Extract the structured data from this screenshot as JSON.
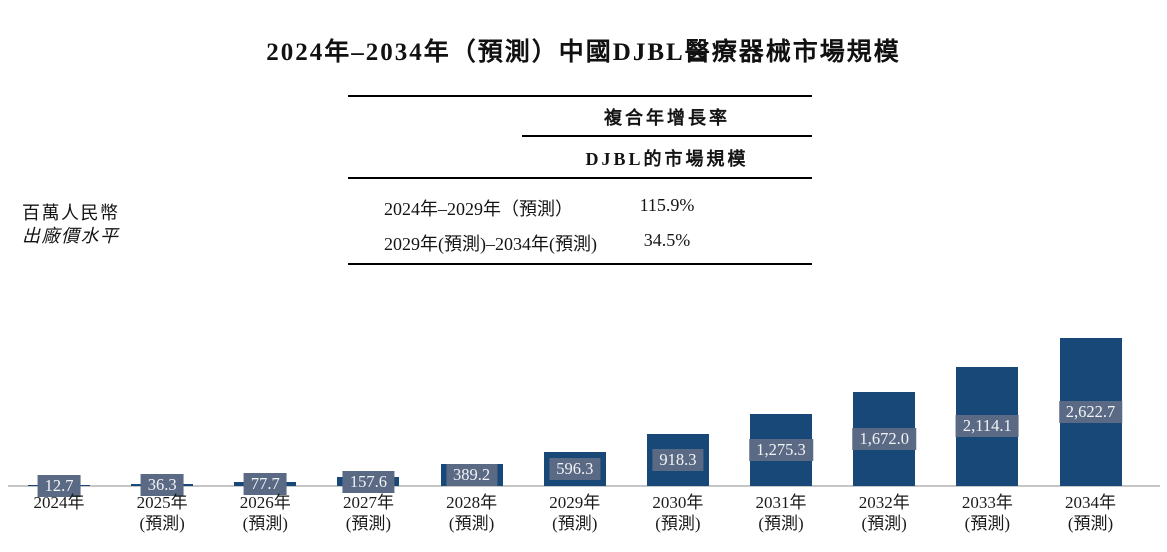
{
  "title": "2024年–2034年（預測）中國DJBL醫療器械市場規模",
  "unit_label": {
    "line1": "百萬人民幣",
    "line2": "出廠價水平"
  },
  "cagr_table": {
    "header_group": "複合年增長率",
    "header_sub": "DJBL的市場規模",
    "rows": [
      {
        "period": "2024年–2029年（預測）",
        "value": "115.9%"
      },
      {
        "period": "2029年(預測)–2034年(預測)",
        "value": "34.5%"
      }
    ]
  },
  "chart_data": {
    "type": "bar",
    "title": "2024年–2034年（預測）中國DJBL醫療器械市場規模",
    "ylabel": "百萬人民幣（出廠價水平）",
    "xlabel": "",
    "ylim": [
      0,
      2800
    ],
    "grid": false,
    "legend": "none",
    "categories": [
      {
        "line1": "2024年",
        "line2": ""
      },
      {
        "line1": "2025年",
        "line2": "(預測)"
      },
      {
        "line1": "2026年",
        "line2": "(預測)"
      },
      {
        "line1": "2027年",
        "line2": "(預測)"
      },
      {
        "line1": "2028年",
        "line2": "(預測)"
      },
      {
        "line1": "2029年",
        "line2": "(預測)"
      },
      {
        "line1": "2030年",
        "line2": "(預測)"
      },
      {
        "line1": "2031年",
        "line2": "(預測)"
      },
      {
        "line1": "2032年",
        "line2": "(預測)"
      },
      {
        "line1": "2033年",
        "line2": "(預測)"
      },
      {
        "line1": "2034年",
        "line2": "(預測)"
      }
    ],
    "values": [
      12.7,
      36.3,
      77.7,
      157.6,
      389.2,
      596.3,
      918.3,
      1275.3,
      1672.0,
      2114.1,
      2622.7
    ],
    "value_labels": [
      "12.7",
      "36.3",
      "77.7",
      "157.6",
      "389.2",
      "596.3",
      "918.3",
      "1,275.3",
      "1,672.0",
      "2,114.1",
      "2,622.7"
    ],
    "bar_color": "#184878",
    "label_box_color": "#5A6A84",
    "label_text_color": "#F2F3F6",
    "axis_line_color": "#C6C6C6"
  }
}
